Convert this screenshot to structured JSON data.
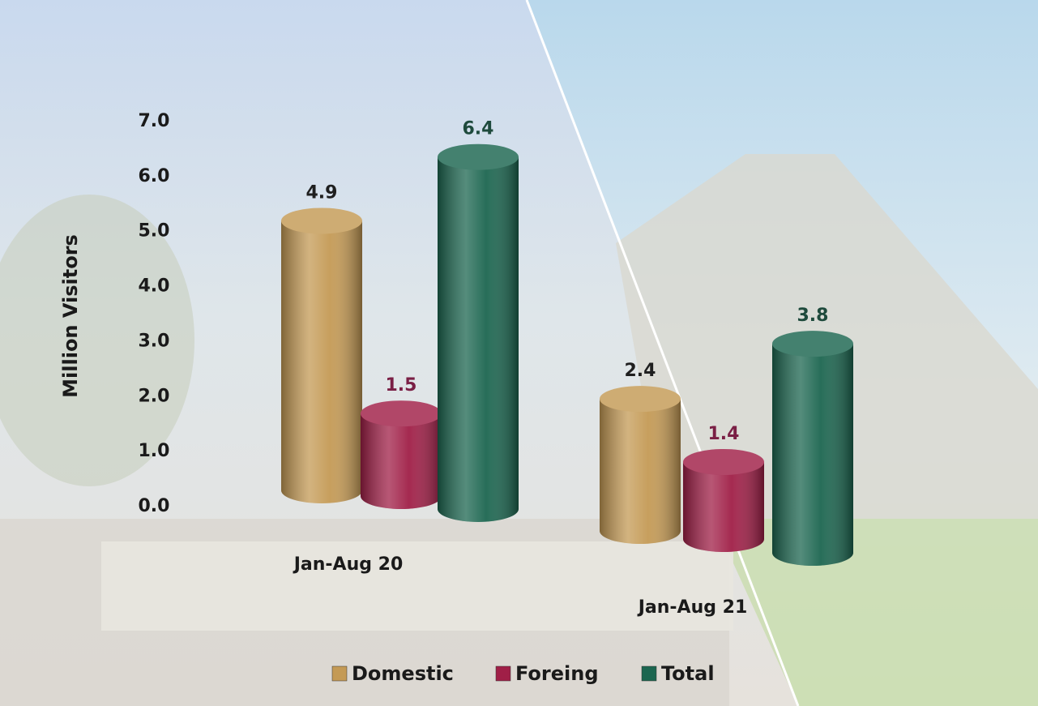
{
  "chart_data": {
    "type": "bar3d",
    "y_label": "Million Visitors",
    "categories": [
      "Jan-Aug 20",
      "Jan-Aug 21"
    ],
    "series": [
      {
        "name": "Domestic",
        "color": "#c49a55",
        "label_color": "#1f1f1f",
        "values": [
          4.9,
          2.4
        ]
      },
      {
        "name": "Foreing",
        "color": "#a01f47",
        "label_color": "#7a1f45",
        "values": [
          1.5,
          1.4
        ]
      },
      {
        "name": "Total",
        "color": "#1c6650",
        "label_color": "#1e4a3c",
        "values": [
          6.4,
          3.8
        ]
      }
    ],
    "ylim": [
      0,
      7
    ],
    "yticks": [
      {
        "value": 0,
        "label": "0.0"
      },
      {
        "value": 1,
        "label": "1.0"
      },
      {
        "value": 2,
        "label": "2.0"
      },
      {
        "value": 3,
        "label": "3.0"
      },
      {
        "value": 4,
        "label": "4.0"
      },
      {
        "value": 5,
        "label": "5.0"
      },
      {
        "value": 6,
        "label": "6.0"
      },
      {
        "value": 7,
        "label": "7.0"
      }
    ],
    "grid": false
  }
}
